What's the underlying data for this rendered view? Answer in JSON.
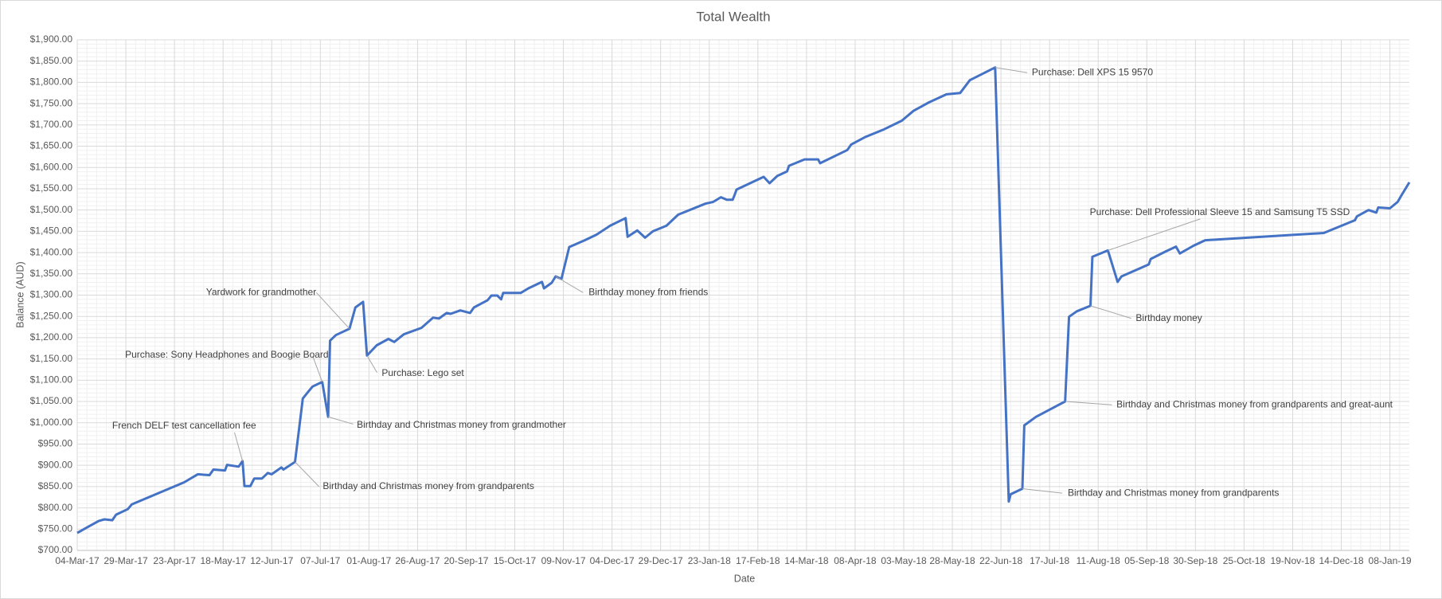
{
  "chart_data": {
    "type": "line",
    "title": "Total Wealth",
    "x_label": "Date",
    "y_label": "Balance (AUD)",
    "color": "#4472c4",
    "grid": true,
    "minor_grid": true,
    "minor_divisions": 5,
    "xlim": [
      "2017-03-04",
      "2019-01-18"
    ],
    "xticks": [
      {
        "value": "2017-03-04",
        "label": "04-Mar-17"
      },
      {
        "value": "2017-03-29",
        "label": "29-Mar-17"
      },
      {
        "value": "2017-04-23",
        "label": "23-Apr-17"
      },
      {
        "value": "2017-05-18",
        "label": "18-May-17"
      },
      {
        "value": "2017-06-12",
        "label": "12-Jun-17"
      },
      {
        "value": "2017-07-07",
        "label": "07-Jul-17"
      },
      {
        "value": "2017-08-01",
        "label": "01-Aug-17"
      },
      {
        "value": "2017-08-26",
        "label": "26-Aug-17"
      },
      {
        "value": "2017-09-20",
        "label": "20-Sep-17"
      },
      {
        "value": "2017-10-15",
        "label": "15-Oct-17"
      },
      {
        "value": "2017-11-09",
        "label": "09-Nov-17"
      },
      {
        "value": "2017-12-04",
        "label": "04-Dec-17"
      },
      {
        "value": "2017-12-29",
        "label": "29-Dec-17"
      },
      {
        "value": "2018-01-23",
        "label": "23-Jan-18"
      },
      {
        "value": "2018-02-17",
        "label": "17-Feb-18"
      },
      {
        "value": "2018-03-14",
        "label": "14-Mar-18"
      },
      {
        "value": "2018-04-08",
        "label": "08-Apr-18"
      },
      {
        "value": "2018-05-03",
        "label": "03-May-18"
      },
      {
        "value": "2018-05-28",
        "label": "28-May-18"
      },
      {
        "value": "2018-06-22",
        "label": "22-Jun-18"
      },
      {
        "value": "2018-07-17",
        "label": "17-Jul-18"
      },
      {
        "value": "2018-08-11",
        "label": "11-Aug-18"
      },
      {
        "value": "2018-09-05",
        "label": "05-Sep-18"
      },
      {
        "value": "2018-09-30",
        "label": "30-Sep-18"
      },
      {
        "value": "2018-10-25",
        "label": "25-Oct-18"
      },
      {
        "value": "2018-11-19",
        "label": "19-Nov-18"
      },
      {
        "value": "2018-12-14",
        "label": "14-Dec-18"
      },
      {
        "value": "2019-01-08",
        "label": "08-Jan-19"
      }
    ],
    "ylim": [
      700,
      1900
    ],
    "yticks": [
      {
        "value": 700,
        "label": "$700.00"
      },
      {
        "value": 750,
        "label": "$750.00"
      },
      {
        "value": 800,
        "label": "$800.00"
      },
      {
        "value": 850,
        "label": "$850.00"
      },
      {
        "value": 900,
        "label": "$900.00"
      },
      {
        "value": 950,
        "label": "$950.00"
      },
      {
        "value": 1000,
        "label": "$1,000.00"
      },
      {
        "value": 1050,
        "label": "$1,050.00"
      },
      {
        "value": 1100,
        "label": "$1,100.00"
      },
      {
        "value": 1150,
        "label": "$1,150.00"
      },
      {
        "value": 1200,
        "label": "$1,200.00"
      },
      {
        "value": 1250,
        "label": "$1,250.00"
      },
      {
        "value": 1300,
        "label": "$1,300.00"
      },
      {
        "value": 1350,
        "label": "$1,350.00"
      },
      {
        "value": 1400,
        "label": "$1,400.00"
      },
      {
        "value": 1450,
        "label": "$1,450.00"
      },
      {
        "value": 1500,
        "label": "$1,500.00"
      },
      {
        "value": 1550,
        "label": "$1,550.00"
      },
      {
        "value": 1600,
        "label": "$1,600.00"
      },
      {
        "value": 1650,
        "label": "$1,650.00"
      },
      {
        "value": 1700,
        "label": "$1,700.00"
      },
      {
        "value": 1750,
        "label": "$1,750.00"
      },
      {
        "value": 1800,
        "label": "$1,800.00"
      },
      {
        "value": 1850,
        "label": "$1,850.00"
      },
      {
        "value": 1900,
        "label": "$1,900.00"
      }
    ],
    "x": [
      "2017-03-04",
      "2017-03-09",
      "2017-03-15",
      "2017-03-18",
      "2017-03-22",
      "2017-03-24",
      "2017-03-30",
      "2017-04-01",
      "2017-04-28",
      "2017-05-05",
      "2017-05-11",
      "2017-05-13",
      "2017-05-19",
      "2017-05-20",
      "2017-05-26",
      "2017-05-28",
      "2017-05-29",
      "2017-06-01",
      "2017-06-03",
      "2017-06-07",
      "2017-06-10",
      "2017-06-12",
      "2017-06-17",
      "2017-06-18",
      "2017-06-24",
      "2017-06-28",
      "2017-07-01",
      "2017-07-03",
      "2017-07-08",
      "2017-07-11",
      "2017-07-12",
      "2017-07-15",
      "2017-07-22",
      "2017-07-25",
      "2017-07-29",
      "2017-07-31",
      "2017-08-05",
      "2017-08-11",
      "2017-08-14",
      "2017-08-19",
      "2017-08-28",
      "2017-09-03",
      "2017-09-06",
      "2017-09-10",
      "2017-09-12",
      "2017-09-17",
      "2017-09-22",
      "2017-09-24",
      "2017-10-01",
      "2017-10-03",
      "2017-10-06",
      "2017-10-08",
      "2017-10-09",
      "2017-10-18",
      "2017-10-22",
      "2017-10-29",
      "2017-10-30",
      "2017-11-03",
      "2017-11-05",
      "2017-11-08",
      "2017-11-12",
      "2017-11-20",
      "2017-11-26",
      "2017-12-03",
      "2017-12-11",
      "2017-12-12",
      "2017-12-17",
      "2017-12-21",
      "2017-12-25",
      "2018-01-01",
      "2018-01-07",
      "2018-01-21",
      "2018-01-25",
      "2018-01-29",
      "2018-02-01",
      "2018-02-04",
      "2018-02-05",
      "2018-02-06",
      "2018-02-20",
      "2018-02-23",
      "2018-02-27",
      "2018-03-04",
      "2018-03-05",
      "2018-03-13",
      "2018-03-20",
      "2018-03-21",
      "2018-04-04",
      "2018-04-06",
      "2018-04-13",
      "2018-04-23",
      "2018-05-02",
      "2018-05-08",
      "2018-05-16",
      "2018-05-25",
      "2018-06-01",
      "2018-06-06",
      "2018-06-19",
      "2018-06-26",
      "2018-06-27",
      "2018-07-03",
      "2018-07-04",
      "2018-07-10",
      "2018-07-25",
      "2018-07-27",
      "2018-07-31",
      "2018-08-07",
      "2018-08-08",
      "2018-08-16",
      "2018-08-21",
      "2018-08-23",
      "2018-09-06",
      "2018-09-07",
      "2018-09-14",
      "2018-09-20",
      "2018-09-22",
      "2018-09-29",
      "2018-10-05",
      "2018-12-05",
      "2018-12-21",
      "2018-12-22",
      "2018-12-28",
      "2019-01-01",
      "2019-01-02",
      "2019-01-08",
      "2019-01-12",
      "2019-01-14",
      "2019-01-16",
      "2019-01-18"
    ],
    "values": [
      741,
      754,
      769,
      773,
      771,
      784,
      797,
      808,
      860,
      879,
      877,
      890,
      888,
      901,
      897,
      910,
      851,
      851,
      869,
      869,
      882,
      879,
      895,
      890,
      908,
      1057,
      1074,
      1085,
      1096,
      1014,
      1193,
      1206,
      1221,
      1271,
      1284,
      1158,
      1182,
      1197,
      1190,
      1208,
      1223,
      1247,
      1245,
      1258,
      1256,
      1264,
      1258,
      1271,
      1288,
      1299,
      1299,
      1290,
      1305,
      1305,
      1316,
      1331,
      1316,
      1329,
      1344,
      1338,
      1413,
      1429,
      1442,
      1463,
      1481,
      1437,
      1452,
      1435,
      1450,
      1463,
      1489,
      1515,
      1519,
      1530,
      1524,
      1524,
      1535,
      1548,
      1578,
      1563,
      1580,
      1591,
      1604,
      1619,
      1619,
      1610,
      1641,
      1654,
      1671,
      1690,
      1710,
      1733,
      1753,
      1772,
      1775,
      1805,
      1835,
      815,
      832,
      845,
      994,
      1014,
      1050,
      1249,
      1262,
      1275,
      1390,
      1405,
      1331,
      1344,
      1372,
      1385,
      1401,
      1414,
      1398,
      1416,
      1429,
      1446,
      1476,
      1485,
      1500,
      1494,
      1506,
      1504,
      1519,
      1535,
      1550,
      1565
    ],
    "annotations": [
      {
        "text": "French DELF test cancellation fee",
        "x": "2017-05-28",
        "y": 910
      },
      {
        "text": "Birthday and Christmas money from grandparents",
        "x": "2017-06-24",
        "y": 908
      },
      {
        "text": "Purchase: Sony Headphones and Boogie Board",
        "x": "2017-07-08",
        "y": 1096
      },
      {
        "text": "Yardwork for grandmother",
        "x": "2017-07-22",
        "y": 1221
      },
      {
        "text": "Birthday and Christmas money from grandmother",
        "x": "2017-07-11",
        "y": 1014
      },
      {
        "text": "Purchase: Lego set",
        "x": "2017-07-31",
        "y": 1158
      },
      {
        "text": "Birthday money from friends",
        "x": "2017-11-05",
        "y": 1344
      },
      {
        "text": "Purchase: Dell XPS 15 9570",
        "x": "2018-06-19",
        "y": 1835
      },
      {
        "text": "Purchase: Dell Professional Sleeve 15 and Samsung T5 SSD",
        "x": "2018-08-16",
        "y": 1405
      },
      {
        "text": "Birthday money",
        "x": "2018-08-07",
        "y": 1275
      },
      {
        "text": "Birthday and Christmas money from grandparents and great-aunt",
        "x": "2018-07-25",
        "y": 1050
      },
      {
        "text": "Birthday and Christmas money from grandparents",
        "x": "2018-07-03",
        "y": 845
      }
    ]
  }
}
